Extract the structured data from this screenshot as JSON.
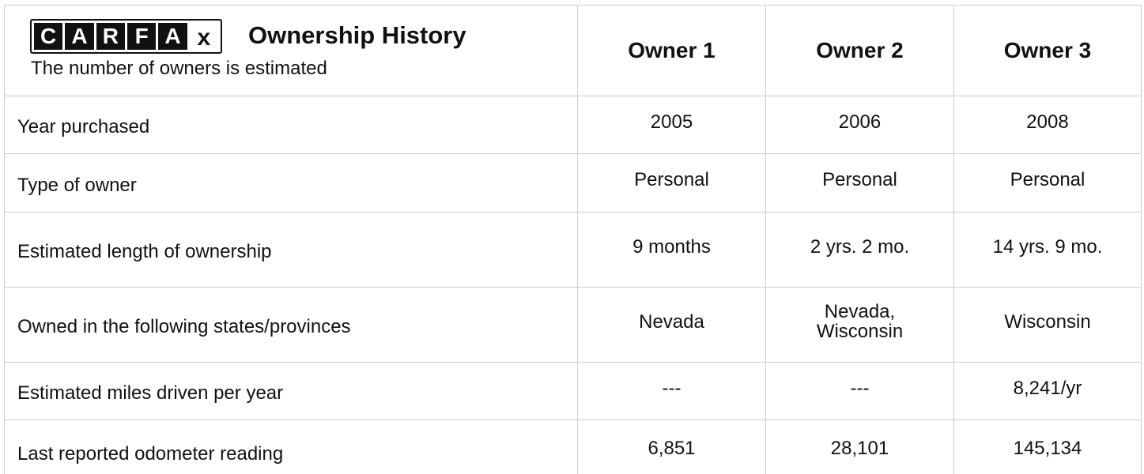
{
  "header": {
    "logo_letters": [
      "C",
      "A",
      "R",
      "F",
      "A",
      "x"
    ],
    "title": "Ownership History",
    "subtitle": "The number of owners is estimated"
  },
  "table": {
    "columns": [
      "Owner 1",
      "Owner 2",
      "Owner 3"
    ],
    "rows": [
      {
        "label": "Year purchased",
        "values": [
          "2005",
          "2006",
          "2008"
        ]
      },
      {
        "label": "Type of owner",
        "values": [
          "Personal",
          "Personal",
          "Personal"
        ]
      },
      {
        "label": "Estimated length of ownership",
        "values": [
          "9 months",
          "2 yrs. 2 mo.",
          "14 yrs. 9 mo."
        ]
      },
      {
        "label": "Owned in the following states/provinces",
        "values": [
          "Nevada",
          "Nevada, Wisconsin",
          "Wisconsin"
        ]
      },
      {
        "label": "Estimated miles driven per year",
        "values": [
          "---",
          "---",
          "8,241/yr"
        ]
      },
      {
        "label": "Last reported odometer reading",
        "values": [
          "6,851",
          "28,101",
          "145,134"
        ]
      }
    ]
  }
}
